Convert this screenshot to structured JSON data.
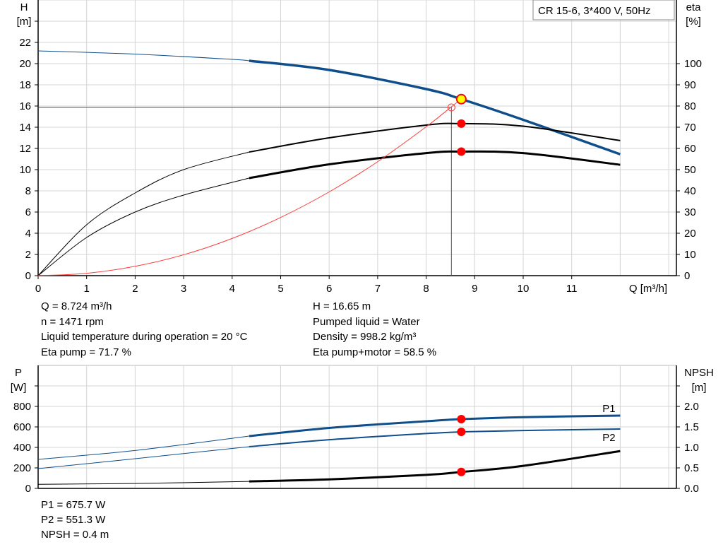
{
  "chart_data": [
    {
      "type": "line",
      "title": "CR 15-6, 3*400 V, 50Hz",
      "xlabel": "Q [m³/h]",
      "ylabel": [
        "H",
        "[m]"
      ],
      "y2label": [
        "eta",
        "[%]"
      ],
      "xlim": [
        0,
        13
      ],
      "ylim": [
        0,
        26
      ],
      "y2lim": [
        0,
        130
      ],
      "xticks": [
        "0",
        "1",
        "2",
        "3",
        "4",
        "5",
        "6",
        "7",
        "8",
        "9",
        "10",
        "11"
      ],
      "yticks": [
        "0",
        "2",
        "4",
        "6",
        "8",
        "10",
        "12",
        "14",
        "16",
        "18",
        "20",
        "22"
      ],
      "y2ticks": [
        "0",
        "10",
        "20",
        "30",
        "40",
        "50",
        "60",
        "70",
        "80",
        "90",
        "100"
      ],
      "grid": true,
      "thick_from_q": 4.35,
      "series": [
        {
          "id": "head",
          "axis": "left",
          "color": "#0f4e8a",
          "x": [
            0,
            2,
            4,
            4.35,
            6,
            8,
            8.724,
            10,
            12
          ],
          "y": [
            21.2,
            20.9,
            20.4,
            20.27,
            19.4,
            17.6,
            16.65,
            14.7,
            11.45
          ]
        },
        {
          "id": "eta-pump",
          "axis": "right",
          "color": "#000000",
          "x": [
            0,
            1,
            2,
            3,
            4.35,
            6,
            8,
            8.724,
            10,
            12
          ],
          "y": [
            0,
            24,
            39,
            50,
            58.3,
            65,
            71,
            71.7,
            70.5,
            63.7
          ]
        },
        {
          "id": "eta-pump-motor",
          "axis": "right",
          "color": "#000000",
          "x": [
            0,
            1,
            2,
            3,
            4.35,
            6,
            8,
            8.724,
            10,
            12
          ],
          "y": [
            0,
            18,
            30,
            38,
            46,
            52.5,
            57.8,
            58.5,
            57.8,
            52.3
          ]
        },
        {
          "id": "system-curve",
          "axis": "left",
          "color": "#ff3b3b",
          "x": [
            0,
            1,
            2,
            3,
            4,
            5,
            6,
            7,
            8,
            8.5,
            8.724
          ],
          "y": [
            0,
            0.22,
            0.88,
            1.97,
            3.51,
            5.49,
            7.9,
            10.75,
            14.04,
            15.85,
            16.65
          ]
        }
      ],
      "duty_point": {
        "q": 8.724,
        "h": 16.65,
        "eta_pump": 71.7,
        "eta_pump_motor": 58.5
      },
      "requested_point": {
        "q": 8.52,
        "h": 15.87
      },
      "colors": {
        "head": "#0f4e8a",
        "duty_marker": "#ff0000",
        "duty_fill": "#ffff00",
        "system": "#ff3b3b"
      }
    },
    {
      "type": "line",
      "xlim": [
        0,
        13
      ],
      "ylabel": [
        "P",
        "[W]"
      ],
      "y2label": [
        "NPSH",
        "[m]"
      ],
      "ylim": [
        0,
        1100
      ],
      "y2lim": [
        0,
        2.75
      ],
      "yticks": [
        "0",
        "200",
        "400",
        "600",
        "800"
      ],
      "y2ticks": [
        "0.0",
        "0.5",
        "1.0",
        "1.5",
        "2.0"
      ],
      "grid": true,
      "series": [
        {
          "id": "p1",
          "name": "P1",
          "axis": "left",
          "color": "#0f4e8a",
          "x": [
            0,
            2,
            4.35,
            6,
            8,
            8.724,
            10,
            12
          ],
          "y": [
            283,
            370,
            510,
            590,
            655,
            675.7,
            695,
            710
          ]
        },
        {
          "id": "p2",
          "name": "P2",
          "axis": "left",
          "color": "#0f4e8a",
          "x": [
            0,
            2,
            4.35,
            6,
            8,
            8.724,
            10,
            12
          ],
          "y": [
            193,
            290,
            407,
            475,
            535,
            551.3,
            565,
            579
          ]
        },
        {
          "id": "npsh",
          "axis": "right",
          "color": "#000000",
          "x": [
            0,
            2,
            4.35,
            6,
            8,
            8.724,
            10,
            12
          ],
          "y": [
            0.1,
            0.12,
            0.17,
            0.22,
            0.33,
            0.4,
            0.55,
            0.91
          ]
        }
      ],
      "duty_point": {
        "q": 8.724,
        "p1": 675.7,
        "p2": 551.3,
        "npsh": 0.4
      }
    }
  ],
  "info_top": {
    "left": [
      "Q = 8.724 m³/h",
      "n = 1471 rpm",
      "Liquid temperature during operation = 20 °C",
      "Eta pump = 71.7 %"
    ],
    "right": [
      "H = 16.65 m",
      "Pumped liquid = Water",
      "Density = 998.2 kg/m³",
      "Eta pump+motor = 58.5 %"
    ]
  },
  "info_bottom": [
    "P1 = 675.7 W",
    "P2 = 551.3 W",
    "NPSH = 0.4 m"
  ]
}
